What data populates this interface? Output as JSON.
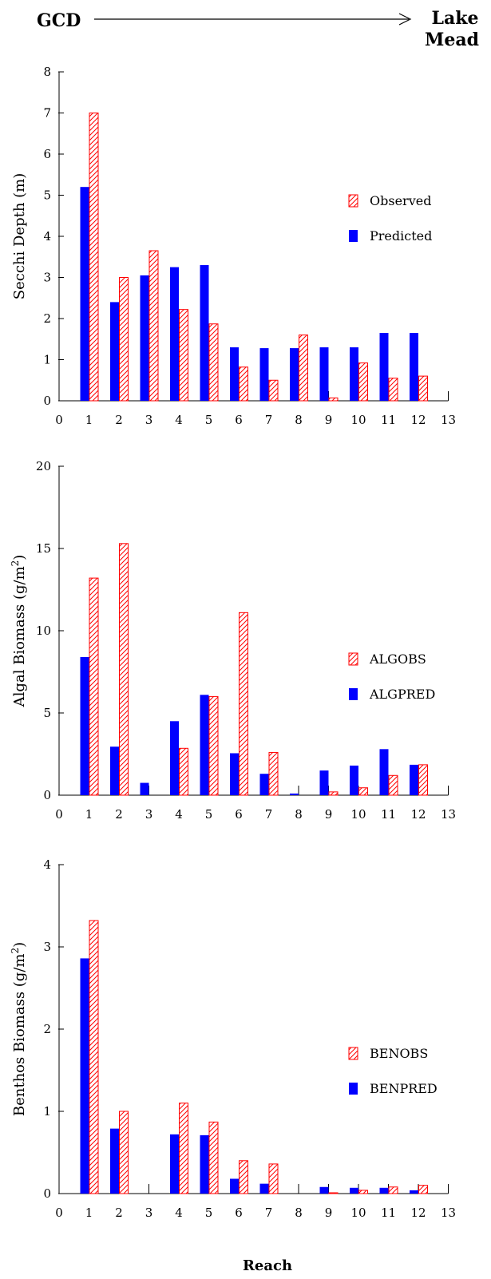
{
  "header": {
    "left": "GCD",
    "right_line1": "Lake",
    "right_line2": "Mead"
  },
  "colors": {
    "predicted": "#0000ff",
    "observed": "#ff0000"
  },
  "xlabel": "Reach",
  "chart_data": [
    {
      "type": "bar",
      "title": "",
      "xlabel": "",
      "ylabel": "Secchi Depth (m)",
      "ylabel_sup": "",
      "ylabel_tail": "",
      "x_ticks": [
        "0",
        "1",
        "2",
        "3",
        "4",
        "5",
        "6",
        "7",
        "8",
        "9",
        "10",
        "11",
        "12",
        "13"
      ],
      "y_ticks": [
        "0",
        "1",
        "2",
        "3",
        "4",
        "5",
        "6",
        "7",
        "8"
      ],
      "ylim": [
        0,
        8
      ],
      "categories": [
        "1",
        "2",
        "3",
        "4",
        "5",
        "6",
        "7",
        "8",
        "9",
        "10",
        "11",
        "12"
      ],
      "legend_position": "right-middle",
      "series": [
        {
          "name": "Observed",
          "style": "hatched",
          "values": [
            7.0,
            3.0,
            3.65,
            2.22,
            1.87,
            0.82,
            0.5,
            1.6,
            0.07,
            0.92,
            0.55,
            0.6
          ]
        },
        {
          "name": "Predicted",
          "style": "solid",
          "values": [
            5.2,
            2.4,
            3.05,
            3.25,
            3.3,
            1.3,
            1.28,
            1.28,
            1.3,
            1.3,
            1.65,
            1.65
          ]
        }
      ]
    },
    {
      "type": "bar",
      "title": "",
      "xlabel": "",
      "ylabel": "Algal Biomass (g/m",
      "ylabel_sup": "2",
      "ylabel_tail": ")",
      "x_ticks": [
        "0",
        "1",
        "2",
        "3",
        "4",
        "5",
        "6",
        "7",
        "8",
        "9",
        "10",
        "11",
        "12",
        "13"
      ],
      "y_ticks": [
        "0",
        "5",
        "10",
        "15",
        "20"
      ],
      "ylim": [
        0,
        20
      ],
      "categories": [
        "1",
        "2",
        "3",
        "4",
        "5",
        "6",
        "7",
        "8",
        "9",
        "10",
        "11",
        "12"
      ],
      "legend_position": "right-middle",
      "series": [
        {
          "name": "ALGOBS",
          "style": "hatched",
          "values": [
            13.2,
            15.3,
            0,
            2.85,
            6.0,
            11.1,
            2.6,
            0,
            0.2,
            0.45,
            1.2,
            1.85
          ]
        },
        {
          "name": "ALGPRED",
          "style": "solid",
          "values": [
            8.4,
            2.95,
            0.75,
            4.5,
            6.1,
            2.55,
            1.3,
            0.1,
            1.5,
            1.8,
            2.8,
            1.85
          ]
        }
      ]
    },
    {
      "type": "bar",
      "title": "",
      "xlabel": "Reach",
      "ylabel": "Benthos Biomass (g/m",
      "ylabel_sup": "2",
      "ylabel_tail": ")",
      "x_ticks": [
        "0",
        "1",
        "2",
        "3",
        "4",
        "5",
        "6",
        "7",
        "8",
        "9",
        "10",
        "11",
        "12",
        "13"
      ],
      "y_ticks": [
        "0",
        "1",
        "2",
        "3",
        "4"
      ],
      "ylim": [
        0,
        4
      ],
      "categories": [
        "1",
        "2",
        "3",
        "4",
        "5",
        "6",
        "7",
        "8",
        "9",
        "10",
        "11",
        "12"
      ],
      "legend_position": "right-middle",
      "series": [
        {
          "name": "BENOBS",
          "style": "hatched",
          "values": [
            3.32,
            1.0,
            0,
            1.1,
            0.87,
            0.4,
            0.36,
            0,
            0.01,
            0.04,
            0.08,
            0.1
          ]
        },
        {
          "name": "BENPRED",
          "style": "solid",
          "values": [
            2.86,
            0.79,
            0,
            0.72,
            0.71,
            0.18,
            0.12,
            0,
            0.08,
            0.07,
            0.07,
            0.04
          ]
        }
      ]
    }
  ]
}
